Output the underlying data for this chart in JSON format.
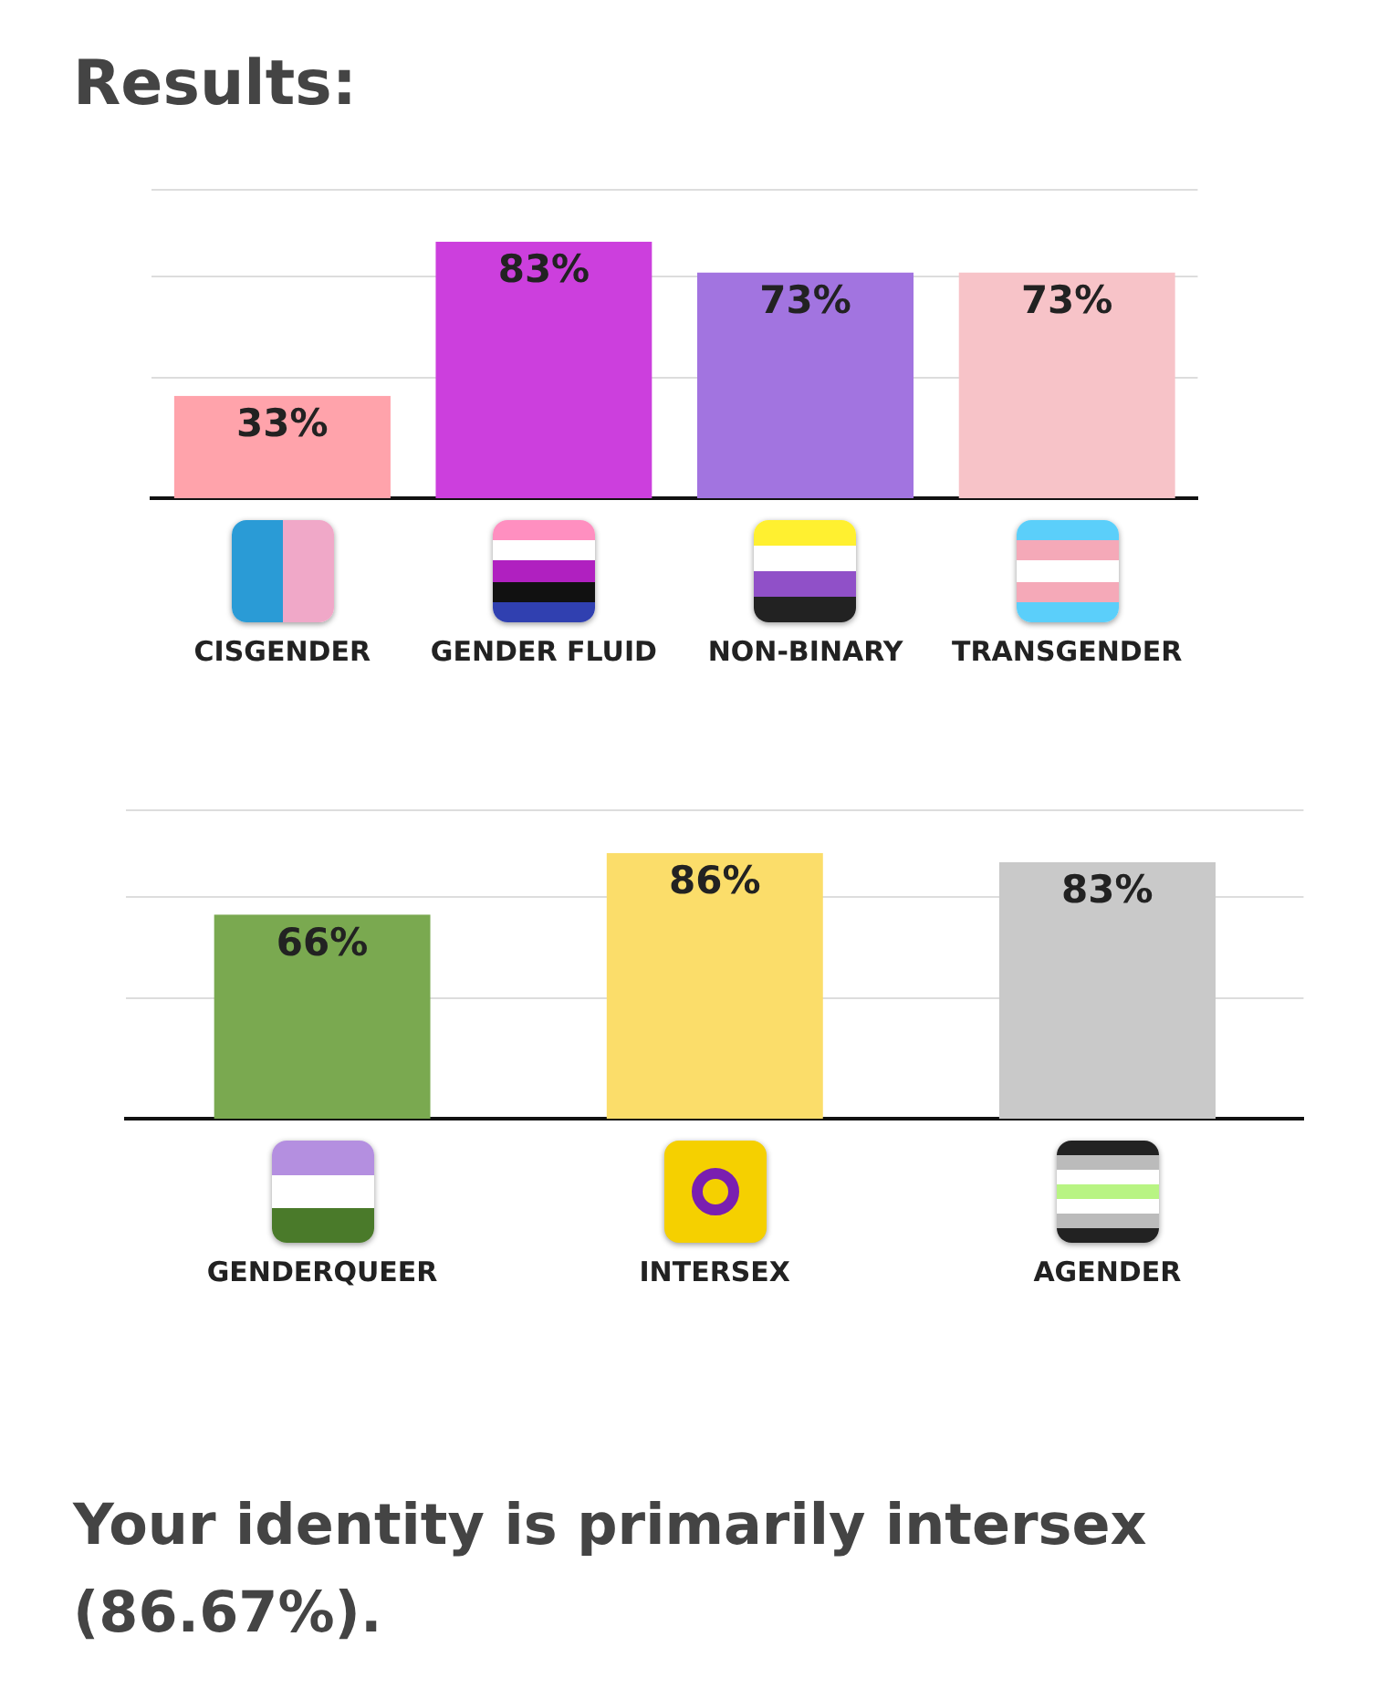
{
  "chart_data": [
    {
      "type": "bar",
      "title": "Results:",
      "categories": [
        "CISGENDER",
        "GENDER FLUID",
        "NON-BINARY",
        "TRANSGENDER"
      ],
      "values": [
        33,
        83,
        73,
        73
      ],
      "colors": [
        "#ffa3ab",
        "#cc3fdd",
        "#a274e0",
        "#f7c3c8"
      ],
      "value_labels": [
        "33%",
        "83%",
        "73%",
        "73%"
      ],
      "ylim": [
        0,
        100
      ],
      "yticks": [
        {
          "value": 39,
          "label": null
        },
        {
          "value": 72,
          "label": null
        },
        {
          "value": 100,
          "label": null
        }
      ],
      "grid": "y",
      "tick_labels": "x"
    },
    {
      "type": "bar",
      "categories": [
        "GENDERQUEER",
        "INTERSEX",
        "AGENDER"
      ],
      "values": [
        66,
        86,
        83
      ],
      "colors": [
        "#7aa950",
        "#fbdd6a",
        "#c9c9c9"
      ],
      "value_labels": [
        "66%",
        "86%",
        "83%"
      ],
      "ylim": [
        0,
        100
      ],
      "yticks": [
        {
          "value": 39,
          "label": null
        },
        {
          "value": 72,
          "label": null
        },
        {
          "value": 100,
          "label": null
        }
      ],
      "grid": "y",
      "tick_labels": "x",
      "annotations": [
        "Your identity is primarily intersex (86.67%)."
      ]
    }
  ]
}
